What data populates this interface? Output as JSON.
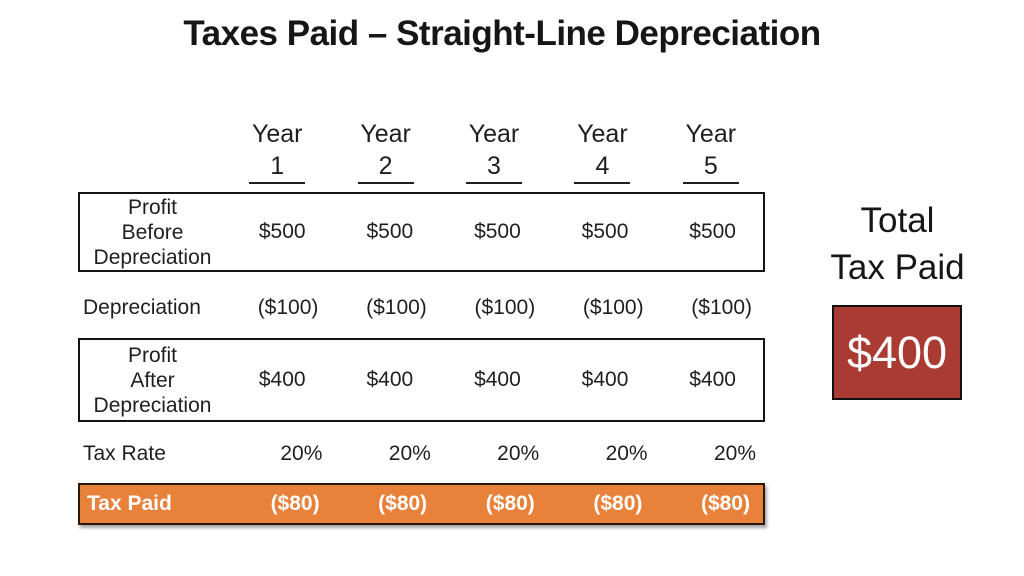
{
  "title": "Taxes Paid – Straight-Line Depreciation",
  "table": {
    "year_label": "Year",
    "years": [
      "1",
      "2",
      "3",
      "4",
      "5"
    ],
    "rows": [
      {
        "label": "Profit Before Depreciation",
        "label_lines": [
          "Profit",
          "Before",
          "Depreciation"
        ],
        "values": [
          "$500",
          "$500",
          "$500",
          "$500",
          "$500"
        ]
      },
      {
        "label": "Depreciation",
        "values": [
          "($100)",
          "($100)",
          "($100)",
          "($100)",
          "($100)"
        ]
      },
      {
        "label": "Profit After Depreciation",
        "label_lines": [
          "Profit",
          "After",
          "Depreciation"
        ],
        "values": [
          "$400",
          "$400",
          "$400",
          "$400",
          "$400"
        ]
      },
      {
        "label": "Tax Rate",
        "values": [
          "20%",
          "20%",
          "20%",
          "20%",
          "20%"
        ]
      },
      {
        "label": "Tax Paid",
        "values": [
          "($80)",
          "($80)",
          "($80)",
          "($80)",
          "($80)"
        ]
      }
    ]
  },
  "summary": {
    "label_line1": "Total",
    "label_line2": "Tax Paid",
    "value": "$400"
  },
  "colors": {
    "highlight_orange": "#E8813A",
    "highlight_border": "#2B1708",
    "total_red": "#A93B33"
  }
}
